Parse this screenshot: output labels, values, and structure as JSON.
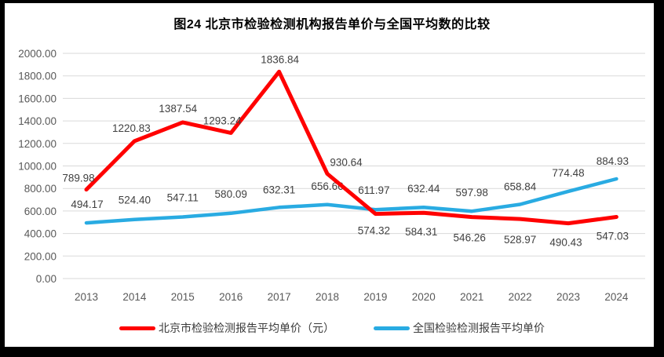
{
  "chart_data": {
    "type": "line",
    "title": "图24 北京市检验检测机构报告单价与全国平均数的比较",
    "categories": [
      "2013",
      "2014",
      "2015",
      "2016",
      "2017",
      "2018",
      "2019",
      "2020",
      "2021",
      "2022",
      "2023",
      "2024"
    ],
    "series": [
      {
        "name": "北京市检验检测报告平均单价（元）",
        "color": "#FF0000",
        "values": [
          789.98,
          1220.83,
          1387.54,
          1293.24,
          1836.84,
          930.64,
          574.32,
          584.31,
          546.26,
          528.97,
          490.43,
          547.03
        ],
        "labels": [
          "789.98",
          "1220.83",
          "1387.54",
          "1293.24",
          "1836.84",
          "930.64",
          "574.32",
          "584.31",
          "546.26",
          "528.97",
          "490.43",
          "547.03"
        ],
        "label_dx": [
          -10,
          -4,
          -6,
          -11,
          1,
          24,
          -2,
          -3,
          -3,
          0,
          -3,
          -5
        ],
        "label_dy": [
          -10,
          -12,
          -13,
          -11,
          -11,
          -10,
          26,
          29,
          31,
          31,
          29,
          29
        ]
      },
      {
        "name": "全国检验检测报告平均单价",
        "color": "#29ABE2",
        "values": [
          494.17,
          524.4,
          547.11,
          580.09,
          632.31,
          656.66,
          611.97,
          632.44,
          597.98,
          658.84,
          774.48,
          884.93
        ],
        "labels": [
          "494.17",
          "524.40",
          "547.11",
          "580.09",
          "632.31",
          "656.66",
          "611.97",
          "632.44",
          "597.98",
          "658.84",
          "774.48",
          "884.93"
        ],
        "label_dx": [
          1,
          0,
          0,
          0,
          0,
          0,
          -2,
          0,
          0,
          0,
          0,
          -5
        ],
        "label_dy": [
          -19,
          -20,
          -20,
          -20,
          -18,
          -19,
          -20,
          -19,
          -19,
          -18,
          -19,
          -18
        ]
      }
    ],
    "y_axis": {
      "min": 0,
      "max": 2000,
      "step": 200,
      "tick_labels": [
        "0.00",
        "200.00",
        "400.00",
        "600.00",
        "800.00",
        "1000.00",
        "1200.00",
        "1400.00",
        "1600.00",
        "1800.00",
        "2000.00"
      ]
    },
    "grid": true,
    "legend_position": "bottom",
    "colors": {
      "grid": "#D9D9D9",
      "tick_text": "#595959",
      "label_text": "#404040",
      "frame": "#000000",
      "background": "#FFFFFF"
    }
  }
}
